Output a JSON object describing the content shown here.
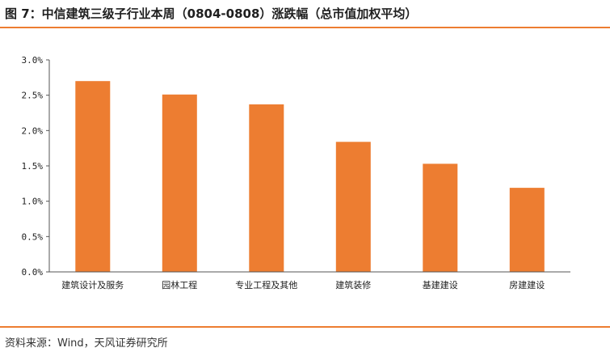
{
  "header": {
    "title": "图 7：中信建筑三级子行业本周（0804-0808）涨跌幅（总市值加权平均）"
  },
  "footer": {
    "source": "资料来源：Wind，天风证券研究所"
  },
  "colors": {
    "bar": "#ED7D31",
    "rule": "#ED7D31"
  },
  "chart_data": {
    "type": "bar",
    "title": "图 7：中信建筑三级子行业本周（0804-0808）涨跌幅（总市值加权平均）",
    "xlabel": "",
    "ylabel": "",
    "categories": [
      "建筑设计及服务",
      "园林工程",
      "专业工程及其他",
      "建筑装修",
      "基建建设",
      "房建建设"
    ],
    "values": [
      2.7,
      2.51,
      2.37,
      1.84,
      1.53,
      1.19
    ],
    "unit": "%",
    "ylim": [
      0,
      3.0
    ],
    "yticks": [
      "0.0%",
      "0.5%",
      "1.0%",
      "1.5%",
      "2.0%",
      "2.5%",
      "3.0%"
    ],
    "grid": false,
    "legend": "none"
  }
}
